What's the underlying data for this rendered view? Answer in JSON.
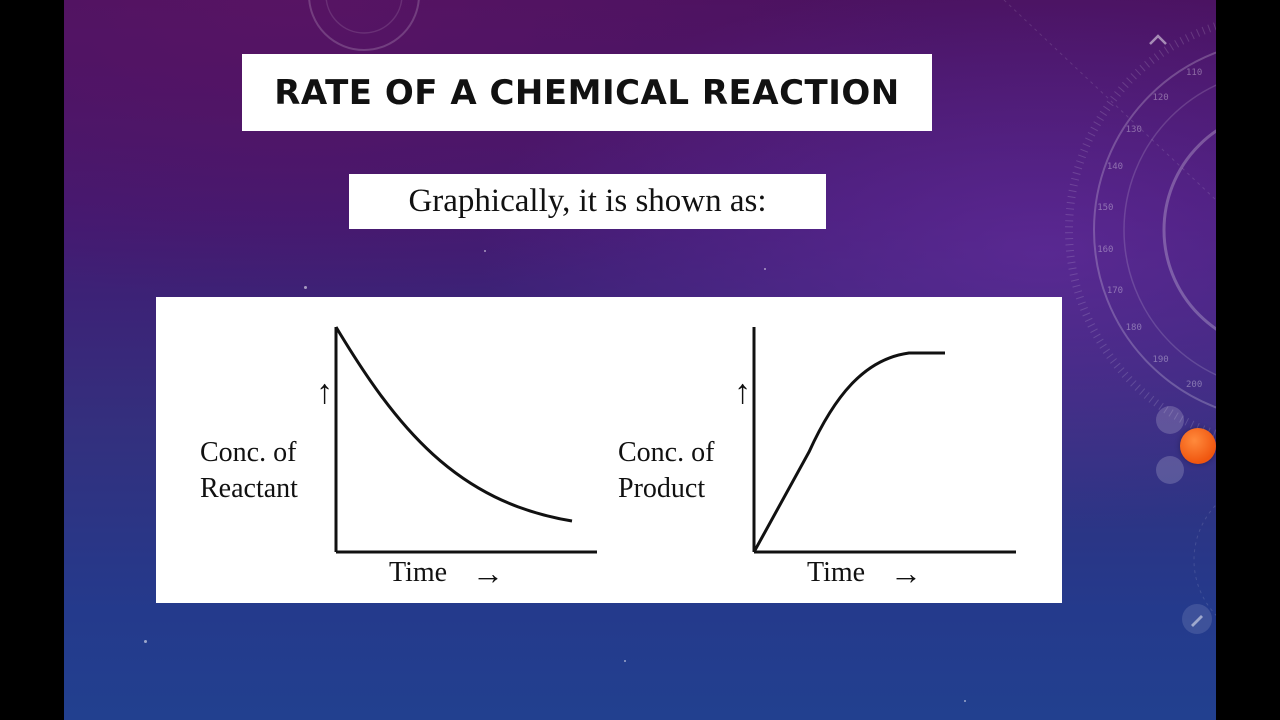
{
  "slide": {
    "title": "RATE OF A CHEMICAL REACTION",
    "subtitle": "Graphically, it is shown as:"
  },
  "figure": {
    "reactant_graph": {
      "ylabel_line1": "Conc. of",
      "ylabel_line2": "Reactant",
      "xlabel": "Time",
      "y_arrow": "↑",
      "x_arrow": "→"
    },
    "product_graph": {
      "ylabel_line1": "Conc. of",
      "ylabel_line2": "Product",
      "xlabel": "Time",
      "y_arrow": "↑",
      "x_arrow": "→"
    }
  },
  "decoration": {
    "dial_ticks": [
      "200",
      "190",
      "180",
      "170",
      "160",
      "150",
      "140",
      "130",
      "120",
      "110"
    ]
  },
  "colors": {
    "nav_accent": "#f0560f",
    "text": "#111111"
  }
}
